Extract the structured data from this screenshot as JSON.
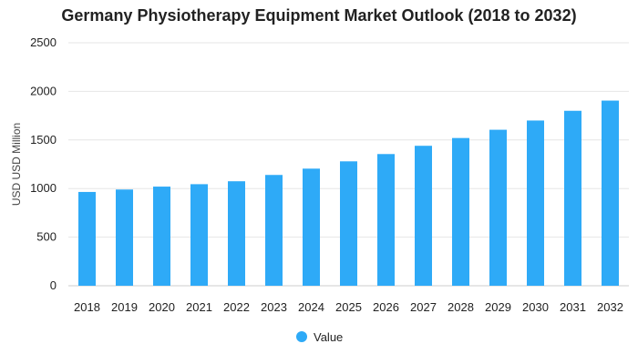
{
  "chart_data": {
    "type": "bar",
    "title": "Germany Physiotherapy Equipment Market Outlook (2018 to 2032)",
    "xlabel": "",
    "ylabel": "USD USD Million",
    "ylim": [
      0,
      2500
    ],
    "yticks": [
      0,
      500,
      1000,
      1500,
      2000,
      2500
    ],
    "categories": [
      "2018",
      "2019",
      "2020",
      "2021",
      "2022",
      "2023",
      "2024",
      "2025",
      "2026",
      "2027",
      "2028",
      "2029",
      "2030",
      "2031",
      "2032"
    ],
    "series": [
      {
        "name": "Value",
        "color": "#2eaaf7",
        "values": [
          965,
          990,
          1020,
          1045,
          1075,
          1140,
          1205,
          1280,
          1355,
          1440,
          1520,
          1605,
          1700,
          1800,
          1905
        ]
      }
    ],
    "grid": true,
    "legend": "bottom-center"
  }
}
